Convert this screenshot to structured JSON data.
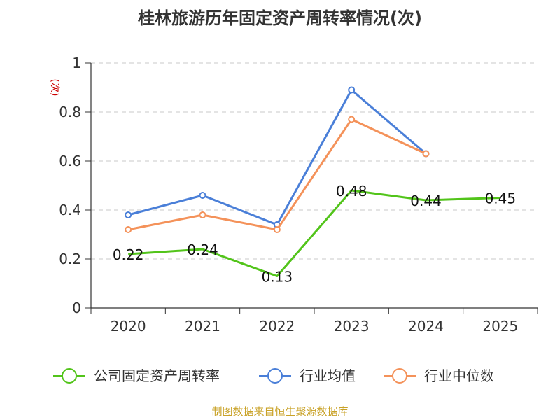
{
  "chart_data": {
    "type": "line",
    "title": "桂林旅游历年固定资产周转率情况(次)",
    "ylabel": "(次)",
    "xlabel": "",
    "categories": [
      "2020",
      "2021",
      "2022",
      "2023",
      "2024",
      "2025"
    ],
    "ylim": [
      0,
      1
    ],
    "yticks": [
      "0",
      "0.2",
      "0.4",
      "0.6",
      "0.8",
      "1"
    ],
    "grid": true,
    "legend_position": "bottom",
    "series": [
      {
        "name": "公司固定资产周转率",
        "color": "#52c41a",
        "values": [
          0.22,
          0.24,
          0.13,
          0.48,
          0.44,
          0.45
        ],
        "labels": [
          "0.22",
          "0.24",
          "0.13",
          "0.48",
          "0.44",
          "0.45"
        ],
        "markers": false
      },
      {
        "name": "行业均值",
        "color": "#4a7fd8",
        "values": [
          0.38,
          0.46,
          0.34,
          0.89,
          0.63,
          null
        ],
        "markers": true
      },
      {
        "name": "行业中位数",
        "color": "#f4925a",
        "values": [
          0.32,
          0.38,
          0.32,
          0.77,
          0.63,
          null
        ],
        "markers": true
      }
    ],
    "source": "制图数据来自恒生聚源数据库"
  }
}
